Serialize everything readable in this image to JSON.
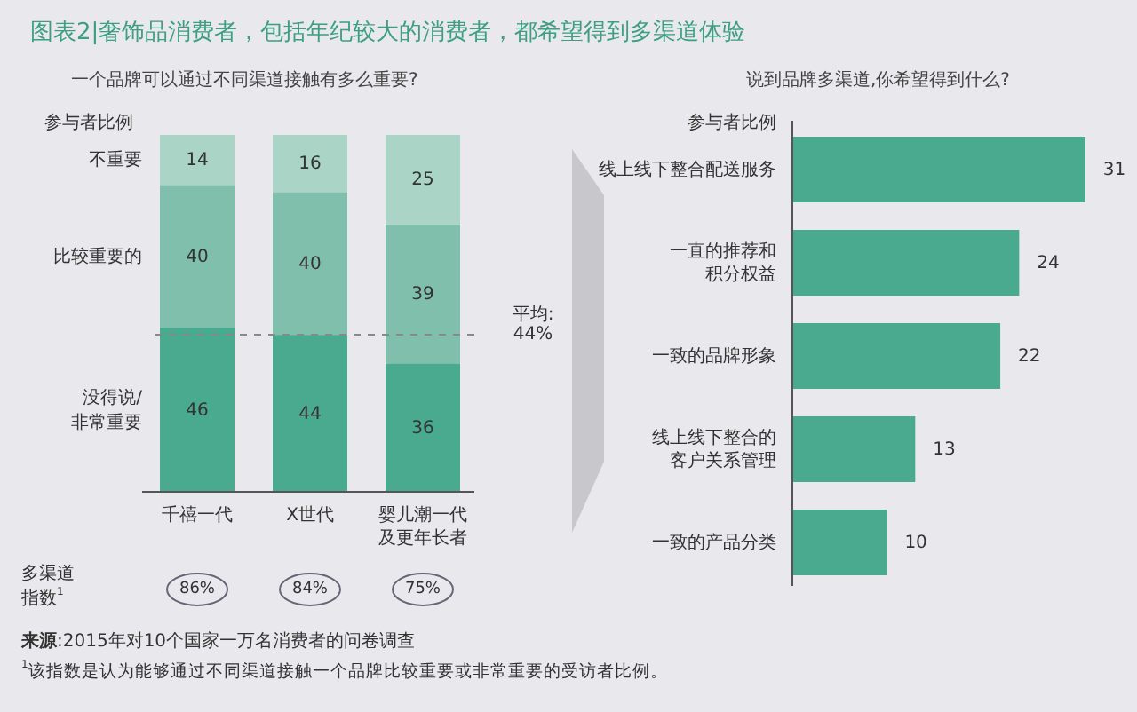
{
  "chart_data": [
    {
      "type": "bar",
      "title": "图表2|奢饰品消费者，包括年纪较大的消费者，都希望得到多渠道体验",
      "subtitle": "一个品牌可以通过不同渠道接触有多么重要?",
      "ylabel": "参与者比例",
      "categories": [
        "千禧一代",
        "X世代",
        "婴儿潮一代及更年长者"
      ],
      "stacked": true,
      "data_labels": true,
      "series": [
        {
          "name": "没得说/非常重要",
          "color": "#4aaa8f",
          "values": [
            46,
            44,
            36
          ]
        },
        {
          "name": "比较重要的",
          "color": "#7fbfab",
          "values": [
            40,
            40,
            39
          ]
        },
        {
          "name": "不重要",
          "color": "#aad5c6",
          "values": [
            14,
            16,
            25
          ]
        }
      ],
      "ref_lines": [
        {
          "axis": "y",
          "value": 44,
          "label": "平均:44%",
          "line_style": "dashed"
        }
      ],
      "annotations": [
        "多渠道指数$^{1}$",
        "86%",
        "84%",
        "75%",
        "**来源**:2015年对10个国家一万名消费者的问卷调查",
        "$^{1}$该指数是认为能够通过不同渠道接触一个品牌比较重要或非常重要的受访者比例。"
      ]
    },
    {
      "type": "bar",
      "orientation": "horizontal",
      "subtitle": "说到品牌多渠道,你希望得到什么?",
      "ylabel": "参与者比例",
      "categories": [
        "线上线下整合配送服务",
        "一直的推荐和积分权益",
        "一致的品牌形象",
        "线上线下整合的客户关系管理",
        "一致的产品分类"
      ],
      "values": [
        31,
        24,
        22,
        13,
        10
      ],
      "color": "#4aaa8f",
      "data_labels": true
    }
  ]
}
